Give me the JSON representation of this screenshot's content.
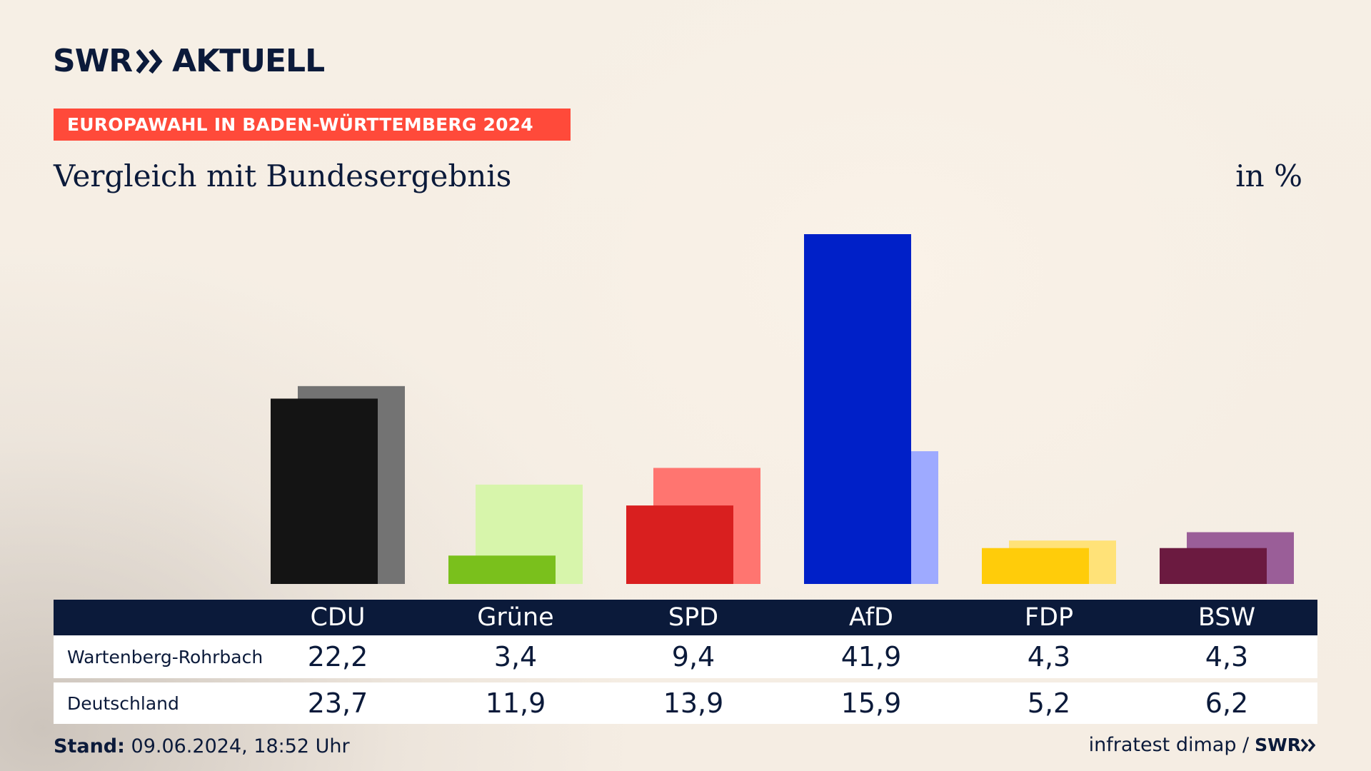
{
  "brand": {
    "logo_text_1": "SWR",
    "logo_text_2": "AKTUELL",
    "logo_icon": "double-chevron-icon"
  },
  "banner": "EUROPAWAHL IN BADEN-WÜRTTEMBERG 2024",
  "subtitle": "Vergleich mit Bundesergebnis",
  "unit": "in %",
  "table": {
    "rows": [
      {
        "label": "Wartenberg-Rohrbach"
      },
      {
        "label": "Deutschland"
      }
    ]
  },
  "footer": {
    "stand_label": "Stand:",
    "stand_value": "09.06.2024, 18:52 Uhr",
    "source": "infratest dimap /",
    "source_logo": "SWR"
  },
  "colors": {
    "navy": "#0b1a3a",
    "banner_red": "#ff4a3a"
  },
  "chart_data": {
    "type": "bar",
    "categories": [
      "CDU",
      "Grüne",
      "SPD",
      "AfD",
      "FDP",
      "BSW"
    ],
    "series": [
      {
        "name": "Wartenberg-Rohrbach",
        "values": [
          22.2,
          3.4,
          9.4,
          41.9,
          4.3,
          4.3
        ],
        "labels": [
          "22,2",
          "3,4",
          "9,4",
          "41,9",
          "4,3",
          "4,3"
        ]
      },
      {
        "name": "Deutschland",
        "values": [
          23.7,
          11.9,
          13.9,
          15.9,
          5.2,
          6.2
        ],
        "labels": [
          "23,7",
          "11,9",
          "13,9",
          "15,9",
          "5,2",
          "6,2"
        ]
      }
    ],
    "colors_front": [
      "#141414",
      "#7ac01c",
      "#d91f1f",
      "#0020c8",
      "#ffcc0a",
      "#6b1a40"
    ],
    "colors_back": [
      "#737373",
      "#d7f5ab",
      "#ff7570",
      "#9eaaff",
      "#ffe278",
      "#9a5e98"
    ],
    "ylim": [
      0,
      41.9
    ],
    "grid": false,
    "legend": "table-below"
  }
}
